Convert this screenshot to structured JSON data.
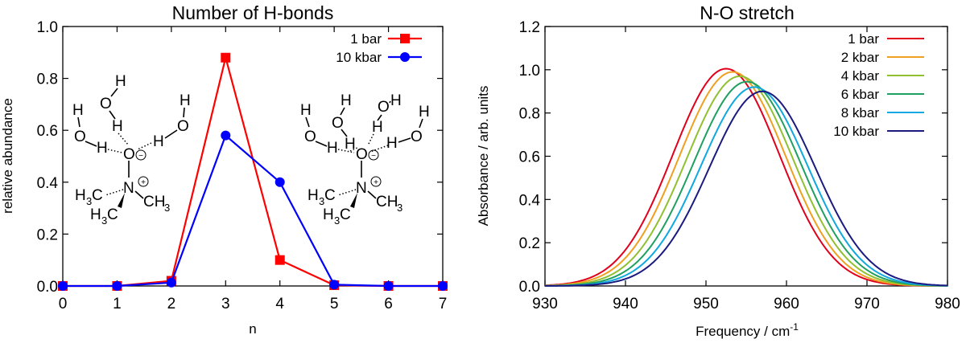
{
  "chart_data": [
    {
      "type": "line",
      "title": "Number of H-bonds",
      "xlabel": "n",
      "ylabel": "relative abundance",
      "xlim": [
        0,
        7
      ],
      "ylim": [
        0,
        1.0
      ],
      "xticks": [
        "0",
        "1",
        "2",
        "3",
        "4",
        "5",
        "6",
        "7"
      ],
      "yticks": [
        "0.0",
        "0.2",
        "0.4",
        "0.6",
        "0.8",
        "1.0"
      ],
      "legend_position": "top-right",
      "x": [
        0,
        1,
        2,
        3,
        4,
        5,
        6,
        7
      ],
      "series": [
        {
          "name": "1 bar",
          "color": "#ff0000",
          "marker": "square",
          "values": [
            0.0,
            0.0,
            0.02,
            0.88,
            0.1,
            0.003,
            0.0,
            0.0
          ]
        },
        {
          "name": "10 kbar",
          "color": "#0000ff",
          "marker": "circle",
          "values": [
            0.0,
            0.0,
            0.013,
            0.58,
            0.4,
            0.005,
            0.0,
            0.0
          ]
        }
      ],
      "molecules": {
        "water_h": "H",
        "water_o": "O",
        "oxide_o": "O",
        "nitrogen": "N",
        "methyl": "H",
        "methyl_sub": "3",
        "methyl_c": "C",
        "methyl_right": "CH",
        "minus": "−",
        "plus": "+"
      }
    },
    {
      "type": "line",
      "title": "N-O stretch",
      "xlabel": "Frequency / cm",
      "xlabel_sup": "-1",
      "ylabel": "Absorbance / arb. units",
      "xlim": [
        930,
        980
      ],
      "ylim": [
        0,
        1.2
      ],
      "xticks": [
        "930",
        "940",
        "950",
        "960",
        "970",
        "980"
      ],
      "yticks": [
        "0.0",
        "0.2",
        "0.4",
        "0.6",
        "0.8",
        "1.0",
        "1.2"
      ],
      "legend_position": "top-right",
      "series": [
        {
          "name": "1 bar",
          "color": "#e0001c",
          "peak_x": 952.5,
          "peak_y": 1.005,
          "width": 6.6
        },
        {
          "name": "2 kbar",
          "color": "#f0a020",
          "peak_x": 953.3,
          "peak_y": 0.99,
          "width": 6.6
        },
        {
          "name": "4 kbar",
          "color": "#90c030",
          "peak_x": 954.2,
          "peak_y": 0.97,
          "width": 6.6
        },
        {
          "name": "6 kbar",
          "color": "#20a060",
          "peak_x": 955.1,
          "peak_y": 0.945,
          "width": 6.6
        },
        {
          "name": "8 kbar",
          "color": "#10a8e0",
          "peak_x": 956.0,
          "peak_y": 0.92,
          "width": 6.6
        },
        {
          "name": "10 kbar",
          "color": "#1a1a80",
          "peak_x": 957.0,
          "peak_y": 0.9,
          "width": 6.6
        }
      ]
    }
  ]
}
